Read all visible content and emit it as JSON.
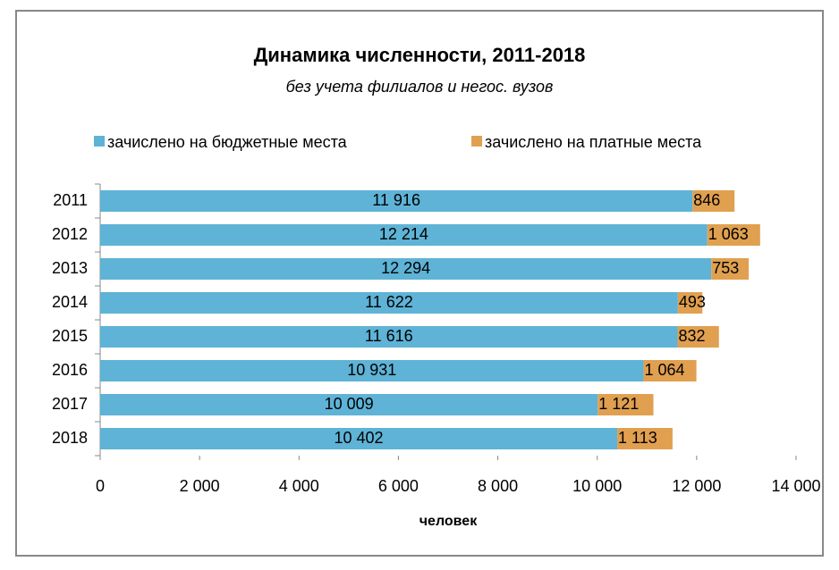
{
  "chart_data": {
    "type": "stacked-barh",
    "title": "Динамика численности, 2011-2018",
    "subtitle": "без учета филиалов и негос. вузов",
    "x_label": "человек",
    "categories": [
      "2011",
      "2012",
      "2013",
      "2014",
      "2015",
      "2016",
      "2017",
      "2018"
    ],
    "series": [
      {
        "name": "зачислено на бюджетные места",
        "color": "#5eb3d6",
        "values": [
          11916,
          12214,
          12294,
          11622,
          11616,
          10931,
          10009,
          10402
        ],
        "value_labels": [
          "11 916",
          "12 214",
          "12 294",
          "11 622",
          "11 616",
          "10 931",
          "10 009",
          "10 402"
        ]
      },
      {
        "name": "зачислено на платные места",
        "color": "#e0a050",
        "values": [
          846,
          1063,
          753,
          493,
          832,
          1064,
          1121,
          1113
        ],
        "value_labels": [
          "846",
          "1 063",
          "753",
          "493",
          "832",
          "1 064",
          "1 121",
          "1 113"
        ]
      }
    ],
    "xlim": [
      0,
      14000
    ],
    "xticks": [
      0,
      {
        "value": 2000,
        "label": "2 000"
      },
      {
        "value": 4000,
        "label": "4 000"
      },
      {
        "value": 6000,
        "label": "6 000"
      },
      {
        "value": 8000,
        "label": "8 000"
      },
      {
        "value": 10000,
        "label": "10 000"
      },
      {
        "value": 12000,
        "label": "12 000"
      },
      {
        "value": 14000,
        "label": "14 000"
      }
    ],
    "legend": "top"
  }
}
